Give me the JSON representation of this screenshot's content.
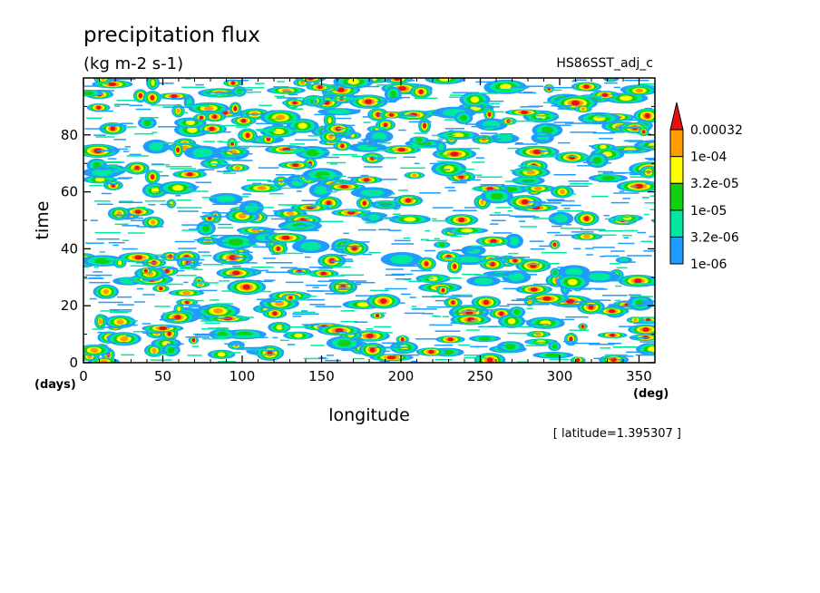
{
  "chart_data": {
    "type": "heatmap",
    "title": "precipitation flux",
    "units": "(kg m-2 s-1)",
    "dataset": "HS86SST_adj_c",
    "xlabel": "longitude",
    "xunit": "(deg)",
    "ylabel": "time",
    "yunit": "(days)",
    "xlim": [
      0,
      360
    ],
    "ylim": [
      0,
      100
    ],
    "xticks": [
      0,
      50,
      100,
      150,
      200,
      250,
      300,
      350
    ],
    "yticks": [
      0,
      20,
      40,
      60,
      80
    ],
    "annotation": "[ latitude=1.395307 ]",
    "colorbar": {
      "levels": [
        "1e-06",
        "3.2e-06",
        "1e-05",
        "3.2e-05",
        "1e-04",
        "0.00032"
      ],
      "colors": [
        "#1e9cff",
        "#00e8a0",
        "#10d010",
        "#ffff00",
        "#ff9c00",
        "#e81010"
      ],
      "extend": "max"
    },
    "pattern": "eastward-propagating streaks, noisy"
  }
}
